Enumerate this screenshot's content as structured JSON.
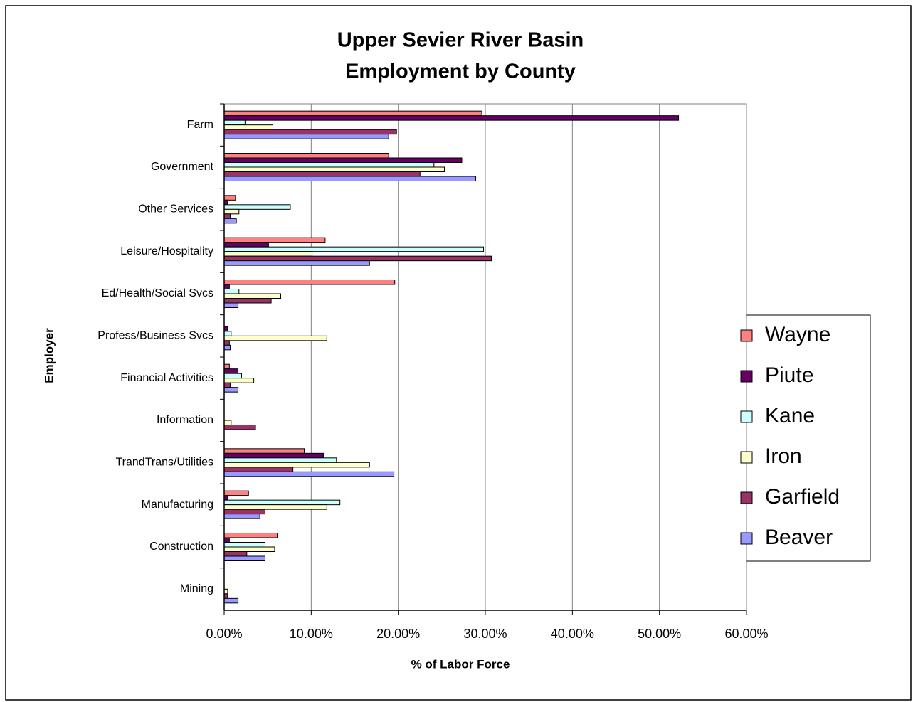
{
  "chart_data": {
    "type": "bar",
    "orientation": "horizontal",
    "title": [
      "Upper Sevier River Basin",
      "Employment by County"
    ],
    "xlabel": "% of Labor Force",
    "ylabel": "Employer",
    "categories": [
      "Farm",
      "Government",
      "Other Services",
      "Leisure/Hospitality",
      "Ed/Health/Social Svcs",
      "Profess/Business Svcs",
      "Financial Activities",
      "Information",
      "TrandTrans/Utilities",
      "Manufacturing",
      "Construction",
      "Mining"
    ],
    "series": [
      {
        "name": "Wayne",
        "color": "#ff8080",
        "values": [
          29.6,
          18.9,
          1.3,
          11.6,
          19.6,
          0,
          0.6,
          0,
          9.2,
          2.8,
          6.1,
          0
        ]
      },
      {
        "name": "Piute",
        "color": "#660066",
        "values": [
          52.2,
          27.3,
          0.4,
          5.1,
          0.6,
          0.4,
          1.6,
          0,
          11.4,
          0.4,
          0.6,
          0
        ]
      },
      {
        "name": "Kane",
        "color": "#ccffff",
        "values": [
          2.4,
          24.1,
          7.6,
          29.8,
          1.7,
          0.8,
          2.0,
          0,
          12.9,
          13.3,
          4.7,
          0
        ]
      },
      {
        "name": "Iron",
        "color": "#ffffcc",
        "values": [
          5.6,
          25.3,
          1.7,
          10.1,
          6.5,
          11.8,
          3.4,
          0.8,
          16.7,
          11.8,
          5.8,
          0.4
        ]
      },
      {
        "name": "Garfield",
        "color": "#993366",
        "values": [
          19.8,
          22.5,
          0.7,
          30.7,
          5.4,
          0.6,
          0.7,
          3.6,
          7.9,
          4.7,
          2.6,
          0.4
        ]
      },
      {
        "name": "Beaver",
        "color": "#9999ff",
        "values": [
          18.9,
          28.9,
          1.4,
          16.7,
          1.6,
          0.7,
          1.6,
          0,
          19.5,
          4.1,
          4.7,
          1.6
        ]
      }
    ],
    "xlim": [
      0,
      60
    ],
    "xticks": [
      {
        "value": 0,
        "label": "0.00%"
      },
      {
        "value": 10,
        "label": "10.00%"
      },
      {
        "value": 20,
        "label": "20.00%"
      },
      {
        "value": 30,
        "label": "30.00%"
      },
      {
        "value": 40,
        "label": "40.00%"
      },
      {
        "value": 50,
        "label": "50.00%"
      },
      {
        "value": 60,
        "label": "60.00%"
      }
    ],
    "grid": true,
    "legend": "right"
  }
}
